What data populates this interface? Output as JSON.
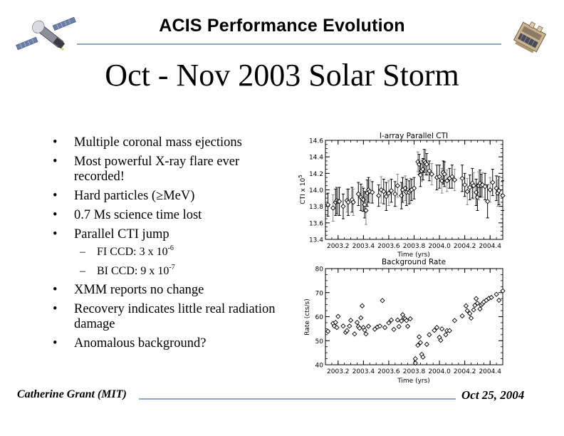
{
  "header": {
    "title": "ACIS Performance Evolution",
    "left_logo_icon": "chandra-satellite-icon",
    "right_logo_icon": "acis-instrument-icon"
  },
  "slide": {
    "title": "Oct - Nov 2003 Solar Storm"
  },
  "bullets": [
    {
      "level": 1,
      "mark": "•",
      "text": "Multiple coronal mass ejections"
    },
    {
      "level": 1,
      "mark": "•",
      "text": "Most powerful X-ray flare ever recorded!"
    },
    {
      "level": 1,
      "mark": "•",
      "text": "Hard particles (≥MeV)"
    },
    {
      "level": 1,
      "mark": "•",
      "text": "0.7 Ms science time lost"
    },
    {
      "level": 1,
      "mark": "•",
      "text": "Parallel CTI jump"
    },
    {
      "level": 2,
      "mark": "–",
      "text": "FI CCD: 3 x 10",
      "sup": "-6"
    },
    {
      "level": 2,
      "mark": "–",
      "text": "BI CCD: 9 x 10",
      "sup": "-7"
    },
    {
      "level": 1,
      "mark": "•",
      "text": "XMM reports no change"
    },
    {
      "level": 1,
      "mark": "•",
      "text": "Recovery indicates little real radiation damage"
    },
    {
      "level": 1,
      "mark": "•",
      "text": "Anomalous background?"
    }
  ],
  "footer": {
    "author": "Catherine Grant (MIT)",
    "date": "Oct 25, 2004"
  },
  "chart_data": [
    {
      "type": "scatter",
      "title": "I-array Parallel CTI",
      "xlabel": "Time (yrs)",
      "ylabel": "CTI x 10",
      "ylabel_sup": "5",
      "xlim": [
        2003.1,
        2004.5
      ],
      "ylim": [
        13.4,
        14.6
      ],
      "xticks": [
        2003.2,
        2003.4,
        2003.6,
        2003.8,
        2004.0,
        2004.2,
        2004.4
      ],
      "xtick_labels": [
        "2003.2",
        "2003.4",
        "2003.6",
        "2003.8",
        "2004.0",
        "2004.2",
        "2004.4"
      ],
      "yticks": [
        13.4,
        13.6,
        13.8,
        14.0,
        14.2,
        14.4,
        14.6
      ],
      "ytick_labels": [
        "13.4",
        "13.6",
        "13.8",
        "14.0",
        "14.2",
        "14.4",
        "14.6"
      ],
      "marker": "diamond",
      "error_bars": true,
      "points": [
        {
          "x": 2003.12,
          "y": 13.82,
          "err": 0.14
        },
        {
          "x": 2003.16,
          "y": 13.78,
          "err": 0.16
        },
        {
          "x": 2003.18,
          "y": 13.85,
          "err": 0.16
        },
        {
          "x": 2003.19,
          "y": 13.87,
          "err": 0.16
        },
        {
          "x": 2003.2,
          "y": 13.86,
          "err": 0.17
        },
        {
          "x": 2003.21,
          "y": 13.86,
          "err": 0.17
        },
        {
          "x": 2003.24,
          "y": 13.8,
          "err": 0.15
        },
        {
          "x": 2003.27,
          "y": 13.87,
          "err": 0.14
        },
        {
          "x": 2003.28,
          "y": 13.85,
          "err": 0.16
        },
        {
          "x": 2003.31,
          "y": 13.88,
          "err": 0.15
        },
        {
          "x": 2003.32,
          "y": 13.85,
          "err": 0.16
        },
        {
          "x": 2003.36,
          "y": 13.95,
          "err": 0.14
        },
        {
          "x": 2003.38,
          "y": 13.91,
          "err": 0.16
        },
        {
          "x": 2003.39,
          "y": 13.89,
          "err": 0.15
        },
        {
          "x": 2003.4,
          "y": 13.88,
          "err": 0.14
        },
        {
          "x": 2003.41,
          "y": 13.82,
          "err": 0.16
        },
        {
          "x": 2003.42,
          "y": 13.75,
          "err": 0.17
        },
        {
          "x": 2003.43,
          "y": 13.96,
          "err": 0.16
        },
        {
          "x": 2003.44,
          "y": 14.0,
          "err": 0.15
        },
        {
          "x": 2003.45,
          "y": 13.98,
          "err": 0.14
        },
        {
          "x": 2003.47,
          "y": 13.97,
          "err": 0.13
        },
        {
          "x": 2003.52,
          "y": 13.93,
          "err": 0.13
        },
        {
          "x": 2003.54,
          "y": 14.0,
          "err": 0.16
        },
        {
          "x": 2003.56,
          "y": 13.98,
          "err": 0.15
        },
        {
          "x": 2003.58,
          "y": 13.92,
          "err": 0.17
        },
        {
          "x": 2003.6,
          "y": 13.96,
          "err": 0.15
        },
        {
          "x": 2003.62,
          "y": 13.99,
          "err": 0.14
        },
        {
          "x": 2003.65,
          "y": 13.95,
          "err": 0.15
        },
        {
          "x": 2003.67,
          "y": 14.05,
          "err": 0.14
        },
        {
          "x": 2003.7,
          "y": 13.93,
          "err": 0.16
        },
        {
          "x": 2003.71,
          "y": 14.0,
          "err": 0.15
        },
        {
          "x": 2003.73,
          "y": 14.02,
          "err": 0.15
        },
        {
          "x": 2003.74,
          "y": 13.97,
          "err": 0.16
        },
        {
          "x": 2003.76,
          "y": 13.97,
          "err": 0.14
        },
        {
          "x": 2003.77,
          "y": 13.99,
          "err": 0.15
        },
        {
          "x": 2003.78,
          "y": 14.0,
          "err": 0.13
        },
        {
          "x": 2003.8,
          "y": 14.02,
          "err": 0.13
        },
        {
          "x": 2003.83,
          "y": 14.34,
          "err": 0.12
        },
        {
          "x": 2003.84,
          "y": 14.31,
          "err": 0.12
        },
        {
          "x": 2003.85,
          "y": 14.18,
          "err": 0.14
        },
        {
          "x": 2003.86,
          "y": 14.23,
          "err": 0.13
        },
        {
          "x": 2003.87,
          "y": 14.25,
          "err": 0.13
        },
        {
          "x": 2003.88,
          "y": 14.35,
          "err": 0.14
        },
        {
          "x": 2003.89,
          "y": 14.33,
          "err": 0.15
        },
        {
          "x": 2003.9,
          "y": 14.31,
          "err": 0.13
        },
        {
          "x": 2003.92,
          "y": 14.23,
          "err": 0.12
        },
        {
          "x": 2003.94,
          "y": 14.19,
          "err": 0.13
        },
        {
          "x": 2003.98,
          "y": 14.15,
          "err": 0.15
        },
        {
          "x": 2004.0,
          "y": 14.16,
          "err": 0.14
        },
        {
          "x": 2004.02,
          "y": 14.11,
          "err": 0.15
        },
        {
          "x": 2004.03,
          "y": 14.21,
          "err": 0.14
        },
        {
          "x": 2004.04,
          "y": 14.19,
          "err": 0.15
        },
        {
          "x": 2004.06,
          "y": 14.11,
          "err": 0.13
        },
        {
          "x": 2004.08,
          "y": 14.14,
          "err": 0.12
        },
        {
          "x": 2004.1,
          "y": 14.16,
          "err": 0.14
        },
        {
          "x": 2004.12,
          "y": 14.12,
          "err": 0.13
        },
        {
          "x": 2004.18,
          "y": 14.14,
          "err": 0.16
        },
        {
          "x": 2004.2,
          "y": 14.06,
          "err": 0.14
        },
        {
          "x": 2004.22,
          "y": 13.98,
          "err": 0.16
        },
        {
          "x": 2004.24,
          "y": 14.03,
          "err": 0.15
        },
        {
          "x": 2004.26,
          "y": 14.08,
          "err": 0.18
        },
        {
          "x": 2004.27,
          "y": 14.05,
          "err": 0.16
        },
        {
          "x": 2004.29,
          "y": 13.97,
          "err": 0.16
        },
        {
          "x": 2004.3,
          "y": 13.91,
          "err": 0.16
        },
        {
          "x": 2004.31,
          "y": 14.05,
          "err": 0.17
        },
        {
          "x": 2004.32,
          "y": 14.08,
          "err": 0.16
        },
        {
          "x": 2004.33,
          "y": 14.05,
          "err": 0.14
        },
        {
          "x": 2004.34,
          "y": 14.06,
          "err": 0.15
        },
        {
          "x": 2004.36,
          "y": 14.04,
          "err": 0.16
        },
        {
          "x": 2004.38,
          "y": 13.86,
          "err": 0.2
        },
        {
          "x": 2004.4,
          "y": 14.0,
          "err": 0.15
        },
        {
          "x": 2004.42,
          "y": 14.09,
          "err": 0.16
        },
        {
          "x": 2004.45,
          "y": 14.02,
          "err": 0.15
        },
        {
          "x": 2004.46,
          "y": 13.96,
          "err": 0.16
        },
        {
          "x": 2004.47,
          "y": 13.99,
          "err": 0.17
        },
        {
          "x": 2004.5,
          "y": 13.93,
          "err": 0.18
        }
      ]
    },
    {
      "type": "scatter",
      "title": "Background Rate",
      "xlabel": "Time (yrs)",
      "ylabel": "Rate (cts/s)",
      "xlim": [
        2003.1,
        2004.5
      ],
      "ylim": [
        40,
        80
      ],
      "xticks": [
        2003.2,
        2003.4,
        2003.6,
        2003.8,
        2004.0,
        2004.2,
        2004.4
      ],
      "xtick_labels": [
        "2003.2",
        "2003.4",
        "2003.6",
        "2003.8",
        "2004.0",
        "2004.2",
        "2004.4"
      ],
      "yticks": [
        40,
        50,
        60,
        70,
        80
      ],
      "ytick_labels": [
        "40",
        "50",
        "60",
        "70",
        "80"
      ],
      "marker": "diamond",
      "points": [
        {
          "x": 2003.12,
          "y": 53.9
        },
        {
          "x": 2003.16,
          "y": 57.2
        },
        {
          "x": 2003.17,
          "y": 56.1
        },
        {
          "x": 2003.18,
          "y": 57.6
        },
        {
          "x": 2003.19,
          "y": 55.5
        },
        {
          "x": 2003.2,
          "y": 60.1
        },
        {
          "x": 2003.24,
          "y": 56.1
        },
        {
          "x": 2003.26,
          "y": 53.5
        },
        {
          "x": 2003.27,
          "y": 54.2
        },
        {
          "x": 2003.29,
          "y": 56.1
        },
        {
          "x": 2003.3,
          "y": 58.5
        },
        {
          "x": 2003.33,
          "y": 52.8
        },
        {
          "x": 2003.35,
          "y": 57.6
        },
        {
          "x": 2003.36,
          "y": 55.9
        },
        {
          "x": 2003.37,
          "y": 55.2
        },
        {
          "x": 2003.38,
          "y": 59.5
        },
        {
          "x": 2003.39,
          "y": 64.5
        },
        {
          "x": 2003.4,
          "y": 55.5
        },
        {
          "x": 2003.41,
          "y": 54.4
        },
        {
          "x": 2003.42,
          "y": 52.8
        },
        {
          "x": 2003.44,
          "y": 56.0
        },
        {
          "x": 2003.49,
          "y": 54.8
        },
        {
          "x": 2003.51,
          "y": 55.7
        },
        {
          "x": 2003.53,
          "y": 56.1
        },
        {
          "x": 2003.55,
          "y": 66.7
        },
        {
          "x": 2003.57,
          "y": 55.5
        },
        {
          "x": 2003.6,
          "y": 57.4
        },
        {
          "x": 2003.62,
          "y": 58.6
        },
        {
          "x": 2003.64,
          "y": 54.7
        },
        {
          "x": 2003.67,
          "y": 58.6
        },
        {
          "x": 2003.68,
          "y": 55.9
        },
        {
          "x": 2003.7,
          "y": 58.2
        },
        {
          "x": 2003.71,
          "y": 60.8
        },
        {
          "x": 2003.72,
          "y": 59.5
        },
        {
          "x": 2003.73,
          "y": 59.1
        },
        {
          "x": 2003.74,
          "y": 58.4
        },
        {
          "x": 2003.75,
          "y": 56.0
        },
        {
          "x": 2003.77,
          "y": 59.1
        },
        {
          "x": 2003.81,
          "y": 42.5
        },
        {
          "x": 2003.81,
          "y": 40.7
        },
        {
          "x": 2003.83,
          "y": 48.1
        },
        {
          "x": 2003.84,
          "y": 51.6
        },
        {
          "x": 2003.85,
          "y": 49.2
        },
        {
          "x": 2003.86,
          "y": 44.3
        },
        {
          "x": 2003.87,
          "y": 43.2
        },
        {
          "x": 2003.9,
          "y": 48.5
        },
        {
          "x": 2003.92,
          "y": 52.5
        },
        {
          "x": 2003.96,
          "y": 54.3
        },
        {
          "x": 2003.98,
          "y": 55.5
        },
        {
          "x": 2004.0,
          "y": 51.4
        },
        {
          "x": 2004.01,
          "y": 50.2
        },
        {
          "x": 2004.02,
          "y": 54.9
        },
        {
          "x": 2004.05,
          "y": 52.5
        },
        {
          "x": 2004.06,
          "y": 54.2
        },
        {
          "x": 2004.08,
          "y": 54.2
        },
        {
          "x": 2004.12,
          "y": 58.4
        },
        {
          "x": 2004.18,
          "y": 60.3
        },
        {
          "x": 2004.21,
          "y": 64.5
        },
        {
          "x": 2004.22,
          "y": 62.5
        },
        {
          "x": 2004.24,
          "y": 61.3
        },
        {
          "x": 2004.25,
          "y": 59.4
        },
        {
          "x": 2004.27,
          "y": 62.8
        },
        {
          "x": 2004.28,
          "y": 64.7
        },
        {
          "x": 2004.29,
          "y": 67.5
        },
        {
          "x": 2004.3,
          "y": 65.6
        },
        {
          "x": 2004.32,
          "y": 63.2
        },
        {
          "x": 2004.33,
          "y": 64.8
        },
        {
          "x": 2004.34,
          "y": 65.4
        },
        {
          "x": 2004.35,
          "y": 66.1
        },
        {
          "x": 2004.37,
          "y": 66.8
        },
        {
          "x": 2004.39,
          "y": 67.6
        },
        {
          "x": 2004.41,
          "y": 68.0
        },
        {
          "x": 2004.45,
          "y": 69.3
        },
        {
          "x": 2004.47,
          "y": 66.8
        },
        {
          "x": 2004.5,
          "y": 70.7
        }
      ]
    }
  ]
}
